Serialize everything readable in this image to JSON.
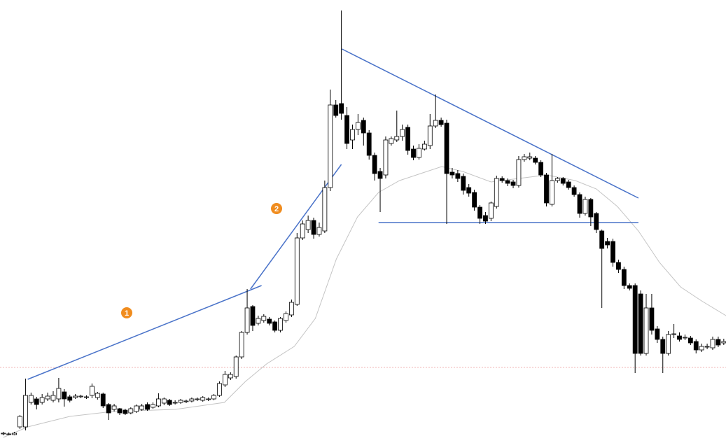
{
  "chart_data": {
    "type": "candlestick",
    "xlim": [
      -0.6,
      130.4
    ],
    "ylim": [
      0,
      633
    ],
    "up_color": "#ffffff",
    "down_color": "#000000",
    "open": [
      13,
      13,
      12,
      23,
      23,
      58,
      63,
      58,
      63,
      61,
      63,
      73,
      66,
      65,
      66,
      65,
      68,
      65,
      70,
      55,
      48,
      49,
      47,
      43,
      45,
      48,
      55,
      51,
      53,
      57,
      61,
      57,
      58,
      59,
      60,
      62,
      61,
      62,
      63,
      68,
      83,
      93,
      95,
      123,
      158,
      195,
      171,
      175,
      177,
      173,
      161,
      175,
      183,
      198,
      293,
      305,
      318,
      298,
      303,
      365,
      483,
      485,
      468,
      433,
      448,
      461,
      443,
      411,
      388,
      383,
      428,
      433,
      438,
      451,
      420,
      408,
      420,
      425,
      453,
      461,
      457,
      387,
      385,
      381,
      365,
      358,
      337,
      325,
      321,
      338,
      378,
      375,
      373,
      368,
      405,
      407,
      407,
      401,
      383,
      341,
      375,
      378,
      373,
      365,
      355,
      328,
      348,
      328,
      303,
      288,
      288,
      258,
      248,
      225,
      225,
      213,
      128,
      193,
      163,
      148,
      128,
      155,
      153,
      150,
      150,
      145,
      133,
      137,
      136,
      148,
      143
    ],
    "high": [
      16,
      15,
      16,
      40,
      92,
      72,
      66,
      70,
      72,
      74,
      93,
      77,
      69,
      70,
      69,
      68,
      85,
      73,
      72,
      57,
      56,
      50,
      49,
      51,
      55,
      56,
      58,
      58,
      71,
      65,
      63,
      61,
      63,
      62,
      65,
      65,
      67,
      65,
      70,
      88,
      103,
      101,
      125,
      160,
      220,
      197,
      182,
      184,
      180,
      175,
      180,
      188,
      205,
      300,
      318,
      325,
      322,
      315,
      375,
      505,
      490,
      618,
      480,
      455,
      470,
      465,
      447,
      415,
      393,
      438,
      438,
      475,
      455,
      455,
      425,
      427,
      432,
      470,
      498,
      465,
      462,
      393,
      390,
      385,
      370,
      362,
      340,
      330,
      345,
      382,
      381,
      378,
      376,
      410,
      413,
      415,
      410,
      404,
      386,
      413,
      380,
      380,
      376,
      368,
      358,
      352,
      350,
      330,
      305,
      293,
      292,
      262,
      252,
      228,
      228,
      218,
      213,
      213,
      167,
      152,
      160,
      170,
      158,
      155,
      153,
      148,
      142,
      142,
      152,
      152,
      149
    ],
    "low": [
      11,
      11,
      11,
      20,
      18,
      55,
      48,
      55,
      60,
      58,
      58,
      52,
      58,
      63,
      64,
      63,
      64,
      62,
      50,
      33,
      45,
      40,
      40,
      41,
      43,
      46,
      46,
      49,
      51,
      54,
      53,
      55,
      56,
      57,
      58,
      60,
      59,
      60,
      61,
      66,
      80,
      90,
      92,
      120,
      155,
      160,
      168,
      172,
      168,
      158,
      158,
      172,
      180,
      196,
      290,
      300,
      292,
      295,
      300,
      360,
      465,
      462,
      420,
      420,
      440,
      425,
      405,
      375,
      330,
      378,
      425,
      430,
      432,
      412,
      404,
      405,
      418,
      420,
      450,
      452,
      313,
      378,
      373,
      355,
      352,
      332,
      313,
      313,
      317,
      335,
      372,
      367,
      364,
      365,
      402,
      404,
      398,
      380,
      338,
      338,
      372,
      368,
      362,
      352,
      322,
      325,
      310,
      300,
      193,
      278,
      252,
      243,
      220,
      218,
      100,
      125,
      125,
      155,
      143,
      100,
      125,
      150,
      145,
      147,
      140,
      128,
      130,
      134,
      133,
      137,
      140
    ],
    "close": [
      14,
      13,
      14,
      38,
      68,
      68,
      55,
      65,
      67,
      68,
      78,
      63,
      61,
      67,
      67,
      66,
      81,
      71,
      53,
      43,
      53,
      43,
      42,
      49,
      53,
      53,
      48,
      55,
      63,
      63,
      55,
      58,
      61,
      60,
      63,
      63,
      65,
      63,
      68,
      85,
      98,
      98,
      123,
      158,
      193,
      168,
      178,
      181,
      171,
      161,
      178,
      185,
      201,
      293,
      313,
      318,
      298,
      308,
      365,
      483,
      468,
      471,
      428,
      448,
      458,
      443,
      411,
      385,
      378,
      433,
      435,
      438,
      448,
      418,
      408,
      421,
      427,
      453,
      461,
      455,
      385,
      383,
      378,
      361,
      357,
      337,
      321,
      317,
      343,
      378,
      375,
      371,
      368,
      405,
      409,
      409,
      401,
      383,
      343,
      375,
      378,
      371,
      365,
      355,
      328,
      348,
      323,
      305,
      278,
      283,
      258,
      248,
      225,
      221,
      128,
      128,
      193,
      161,
      148,
      128,
      155,
      156,
      148,
      151,
      143,
      133,
      138,
      138,
      148,
      140,
      145
    ],
    "lines": [
      {
        "color": "#c4c4c4",
        "x": [
          0,
          4.4,
          12,
          19.6,
          31,
          39.9,
          43.7,
          47.5,
          52.5,
          56.3,
          60.1,
          63.9,
          67.7,
          71.5,
          75.3,
          79.1,
          82.9,
          88,
          93,
          98,
          103.2,
          107,
          110.8,
          114.6,
          118.4,
          122.2,
          126,
          130.6
        ],
        "y": [
          8,
          23,
          38,
          45,
          48,
          58,
          88,
          113,
          138,
          178,
          263,
          323,
          358,
          375,
          385,
          395,
          388,
          373,
          378,
          383,
          375,
          363,
          338,
          303,
          258,
          223,
          203,
          181
        ]
      },
      {
        "color": "#4a73c9",
        "x": [
          4.4,
          46.6
        ],
        "y": [
          91,
          225
        ]
      },
      {
        "color": "#4a73c9",
        "x": [
          44.6,
          61
        ],
        "y": [
          220,
          398
        ]
      },
      {
        "color": "#4a73c9",
        "x": [
          61.1,
          114.6
        ],
        "y": [
          563,
          350
        ]
      },
      {
        "color": "#4a73c9",
        "x": [
          67.7,
          114.6
        ],
        "y": [
          315,
          315
        ]
      }
    ],
    "levels": [
      {
        "value": 108,
        "color": "#f2b3b3"
      }
    ],
    "annotations": [
      1,
      2
    ],
    "annotation_color": "#f08c1e"
  }
}
